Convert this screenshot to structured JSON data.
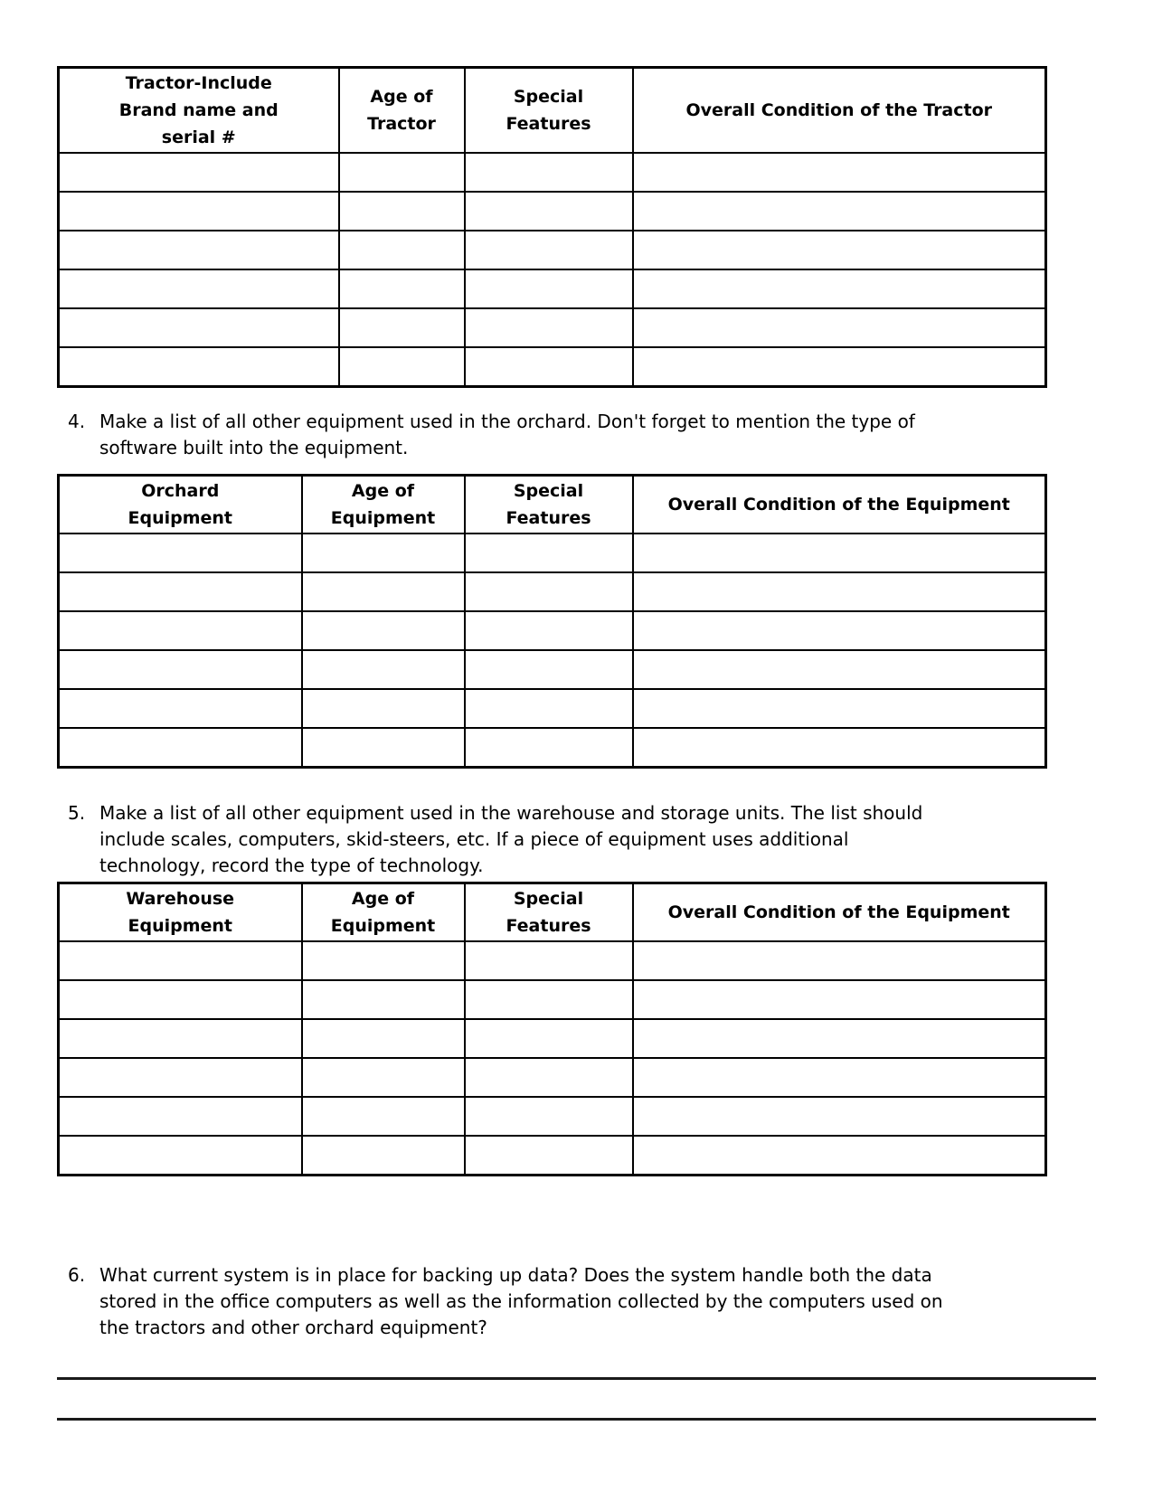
{
  "colors": {
    "background": "#ffffff",
    "text": "#000000",
    "border": "#000000"
  },
  "questions": {
    "q4": {
      "number": "4.",
      "text": "Make a list of all other equipment used in the orchard. Don't forget to mention the type of\nsoftware built into the equipment."
    },
    "q5": {
      "number": "5.",
      "text": "Make a list of all other equipment used in the warehouse and storage units. The list should\ninclude scales, computers, skid-steers, etc. If a piece of equipment uses additional\ntechnology, record the type of technology."
    },
    "q6": {
      "number": "6.",
      "text": "What current system is in place for backing up data? Does the system handle both the data\nstored in the office computers as well as the information collected by the computers used on\nthe tractors and other orchard equipment?"
    }
  },
  "tables": {
    "tractor": {
      "headers": [
        "Tractor-Include\nBrand name and\nserial #",
        "Age of\nTractor",
        "Special\nFeatures",
        "Overall Condition of the Tractor"
      ],
      "empty_rows": 6
    },
    "orchard": {
      "headers": [
        "Orchard\nEquipment",
        "Age of\nEquipment",
        "Special\nFeatures",
        "Overall Condition of the Equipment"
      ],
      "empty_rows": 6
    },
    "warehouse": {
      "headers": [
        "Warehouse\nEquipment",
        "Age of\nEquipment",
        "Special\nFeatures",
        "Overall Condition of the Equipment"
      ],
      "empty_rows": 6
    }
  },
  "answer_lines": {
    "count": 2
  }
}
